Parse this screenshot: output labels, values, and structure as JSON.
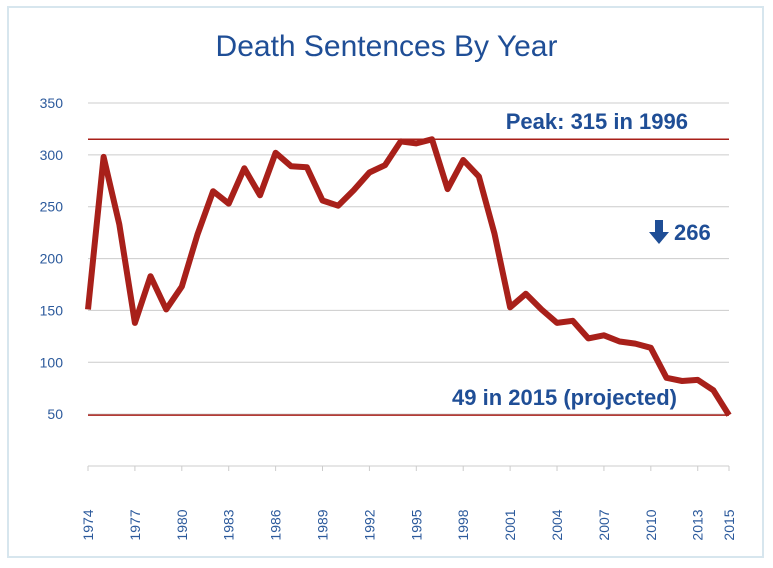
{
  "chart_data": {
    "type": "line",
    "title": "Death Sentences By Year",
    "xlabel": "",
    "ylabel": "",
    "ylim": [
      0,
      350
    ],
    "xlim": [
      1974,
      2015
    ],
    "y_ticks": [
      50,
      100,
      150,
      200,
      250,
      300,
      350
    ],
    "x_ticks": [
      1974,
      1977,
      1980,
      1983,
      1986,
      1989,
      1992,
      1995,
      1998,
      2001,
      2004,
      2007,
      2010,
      2013,
      2015
    ],
    "grid": true,
    "line_color": "#a8201a",
    "series": [
      {
        "x": [
          1974,
          1975,
          1976,
          1977,
          1978,
          1979,
          1980,
          1981,
          1982,
          1983,
          1984,
          1985,
          1986,
          1987,
          1988,
          1989,
          1990,
          1991,
          1992,
          1993,
          1994,
          1995,
          1996,
          1997,
          1998,
          1999,
          2000,
          2001,
          2002,
          2003,
          2004,
          2005,
          2006,
          2007,
          2008,
          2009,
          2010,
          2011,
          2012,
          2013,
          2014,
          2015
        ],
        "values": [
          151,
          298,
          233,
          138,
          183,
          151,
          173,
          223,
          265,
          253,
          287,
          261,
          302,
          289,
          288,
          256,
          251,
          266,
          283,
          290,
          313,
          311,
          315,
          267,
          295,
          279,
          224,
          153,
          166,
          151,
          138,
          140,
          123,
          126,
          120,
          118,
          114,
          85,
          82,
          83,
          73,
          49
        ]
      }
    ],
    "reference_lines": [
      {
        "value": 315,
        "label": "Peak: 315 in 1996"
      },
      {
        "value": 49,
        "label": "49 in 2015 (projected)"
      }
    ],
    "change_annotation": {
      "arrow": "down-arrow-icon",
      "label": "266"
    }
  }
}
